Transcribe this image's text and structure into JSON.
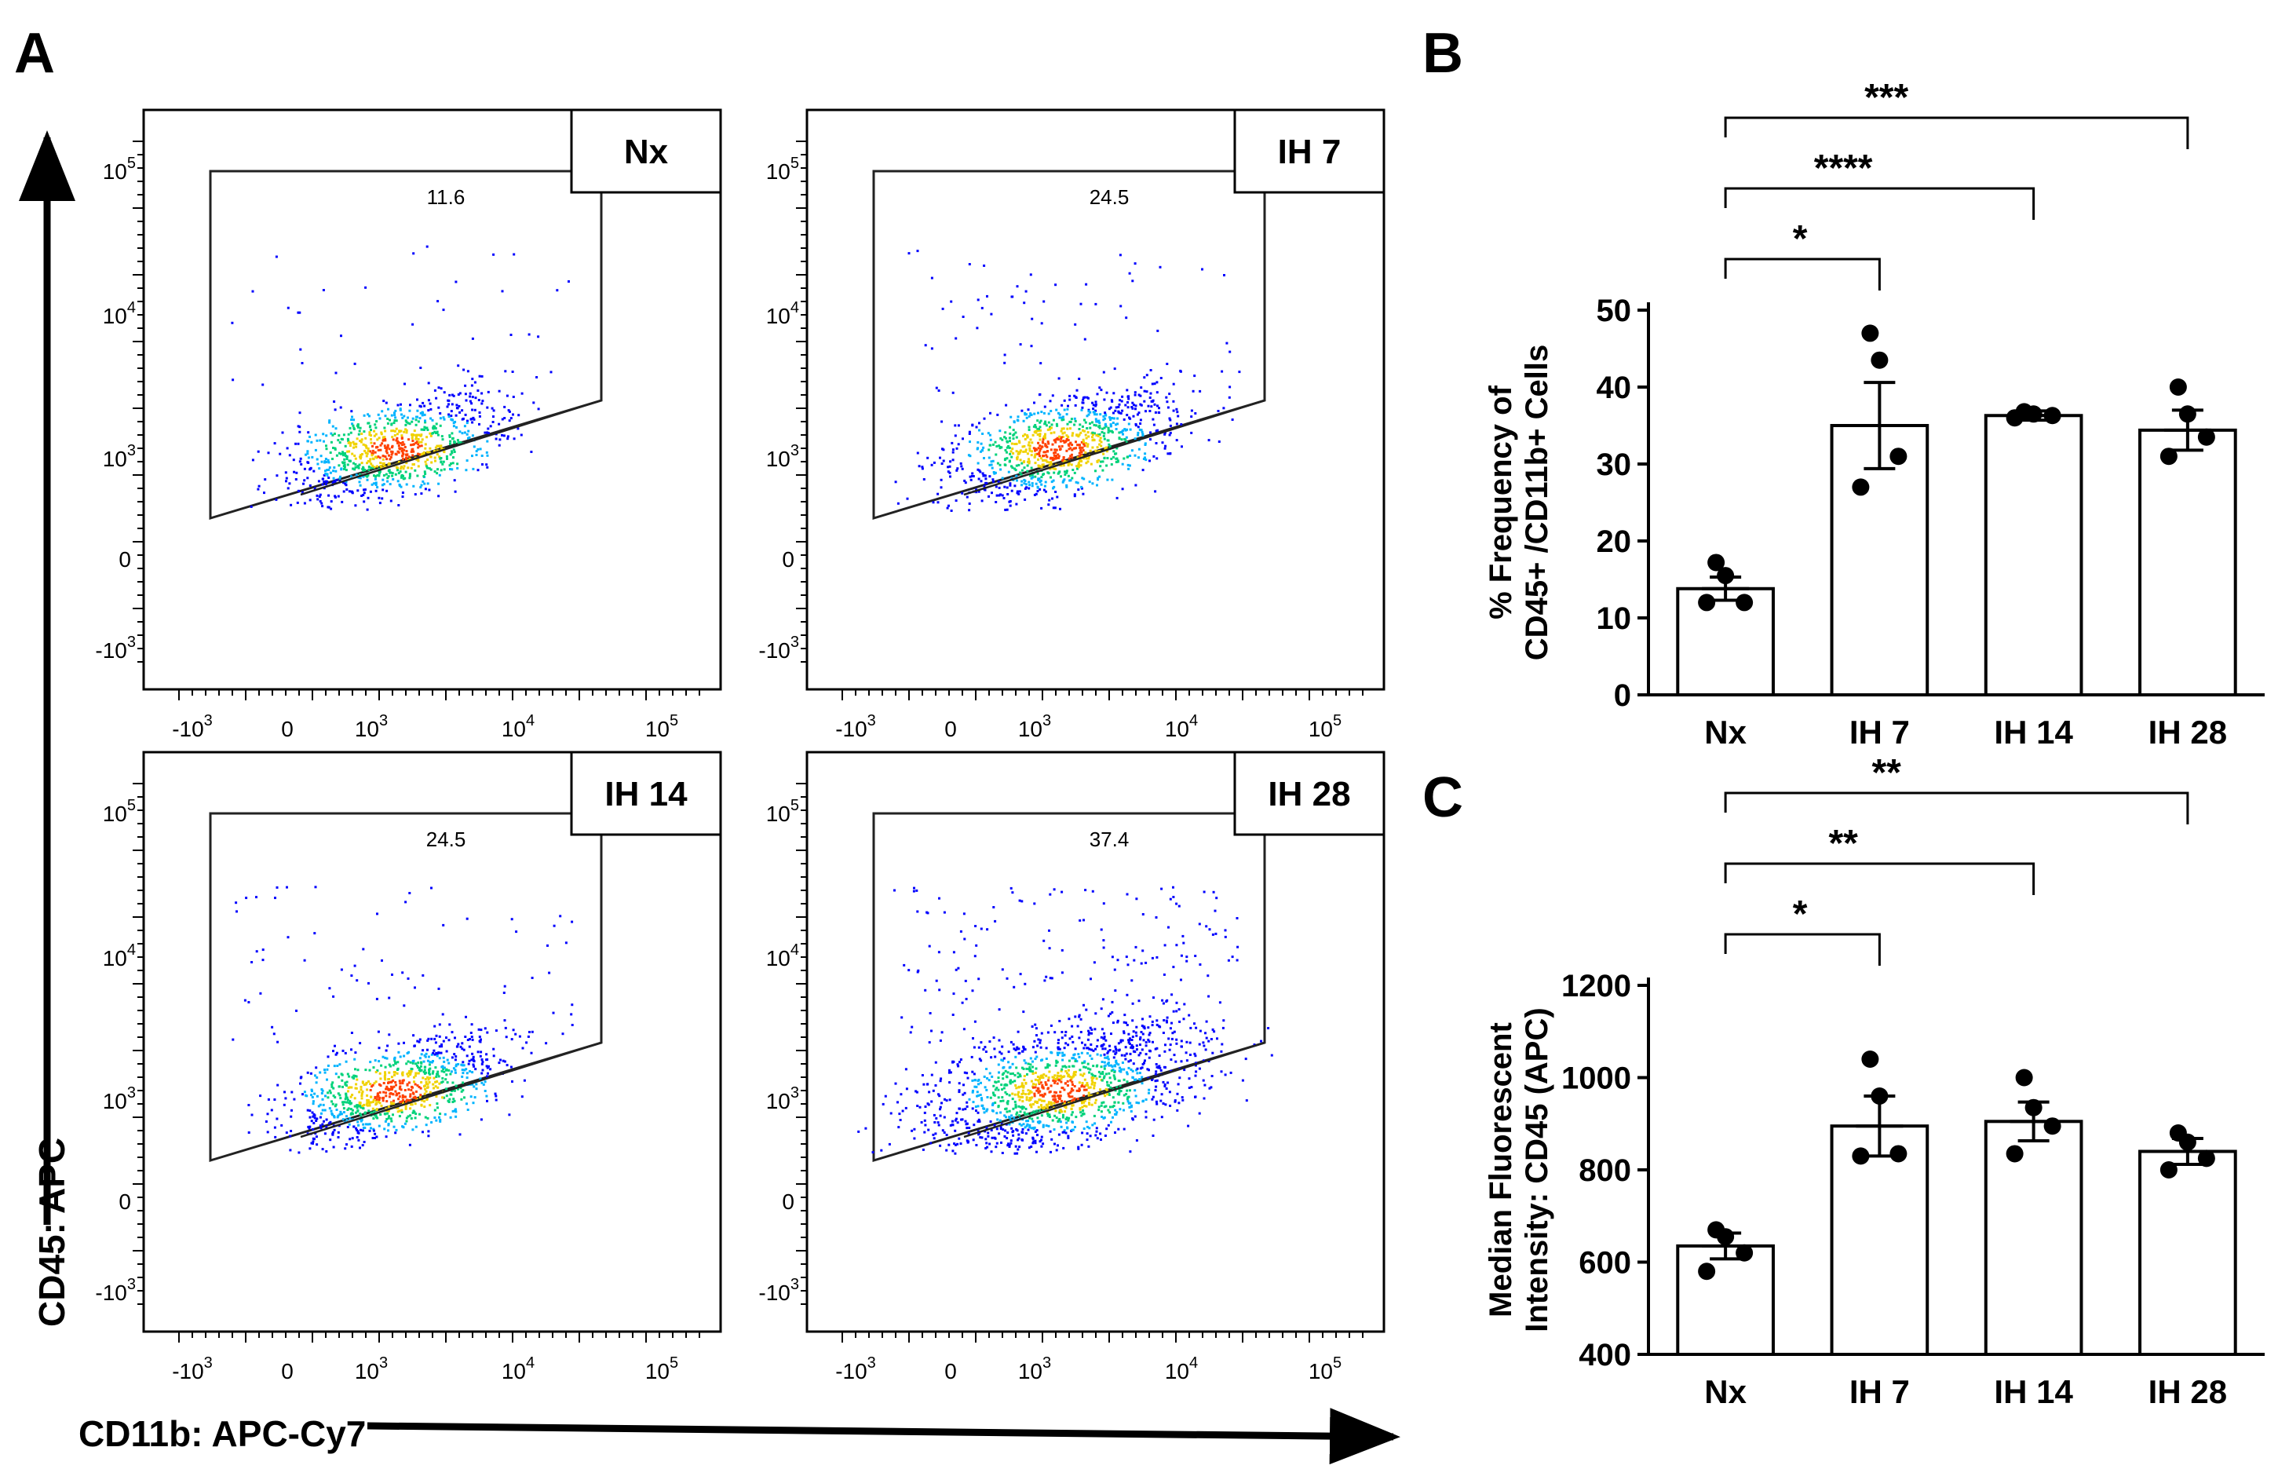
{
  "panel_labels": {
    "a": "A",
    "b": "B",
    "c": "C"
  },
  "flow": {
    "y_axis_title": "CD45: APC",
    "x_axis_title": "CD11b: APC-Cy7",
    "tick_base": "10",
    "tick_exponents": [
      "5",
      "4",
      "3",
      "3",
      "4",
      "5"
    ],
    "y_tick_labels": [
      "10^5",
      "10^4",
      "10^3",
      "0",
      "-10^3"
    ],
    "x_tick_labels": [
      "-10^3",
      "0",
      "10^3",
      "10^4",
      "10^5"
    ],
    "zero_label": "0",
    "minus_prefix": "-",
    "density_colors": [
      "#0000ff",
      "#00b4ff",
      "#00d27a",
      "#f0d200",
      "#ff4000"
    ],
    "plots": [
      {
        "label": "Nx",
        "gate_pct": "11.6"
      },
      {
        "label": "IH 7",
        "gate_pct": "24.5"
      },
      {
        "label": "IH 14",
        "gate_pct": "24.5"
      },
      {
        "label": "IH 28",
        "gate_pct": "37.4"
      }
    ]
  },
  "chart_data": [
    {
      "panel": "B",
      "type": "bar",
      "categories": [
        "Nx",
        "IH 7",
        "IH 14",
        "IH 28"
      ],
      "values": [
        13.8,
        35.0,
        36.3,
        34.4
      ],
      "errors": [
        1.5,
        5.6,
        0.6,
        2.6
      ],
      "points": [
        [
          12,
          12,
          15.5,
          17.2
        ],
        [
          27,
          31,
          43.5,
          47
        ],
        [
          36,
          36.3,
          36.5,
          36.8
        ],
        [
          31,
          33.5,
          36.5,
          40
        ]
      ],
      "ylabel_line1": "%  Frequency of",
      "ylabel_line2": "CD45+ /CD11b+ Cells",
      "ylim": [
        0,
        50
      ],
      "yticks": [
        "0",
        "10",
        "20",
        "30",
        "40",
        "50"
      ],
      "significance": [
        {
          "from": "Nx",
          "to": "IH 7",
          "label": "*"
        },
        {
          "from": "Nx",
          "to": "IH 14",
          "label": "****"
        },
        {
          "from": "Nx",
          "to": "IH 28",
          "label": "***"
        }
      ]
    },
    {
      "panel": "C",
      "type": "bar",
      "categories": [
        "Nx",
        "IH 7",
        "IH 14",
        "IH 28"
      ],
      "values": [
        635,
        895,
        905,
        840
      ],
      "errors": [
        28,
        65,
        42,
        28
      ],
      "points": [
        [
          580,
          620,
          655,
          670
        ],
        [
          830,
          835,
          960,
          1040
        ],
        [
          835,
          895,
          935,
          1000
        ],
        [
          800,
          825,
          860,
          880
        ]
      ],
      "ylabel_line1": "Median Fluorescent",
      "ylabel_line2": "Intensity: CD45  (APC)",
      "ylim": [
        400,
        1200
      ],
      "yticks": [
        "400",
        "600",
        "800",
        "1000",
        "1200"
      ],
      "significance": [
        {
          "from": "Nx",
          "to": "IH 7",
          "label": "*"
        },
        {
          "from": "Nx",
          "to": "IH 14",
          "label": "**"
        },
        {
          "from": "Nx",
          "to": "IH 28",
          "label": "**"
        }
      ]
    }
  ]
}
